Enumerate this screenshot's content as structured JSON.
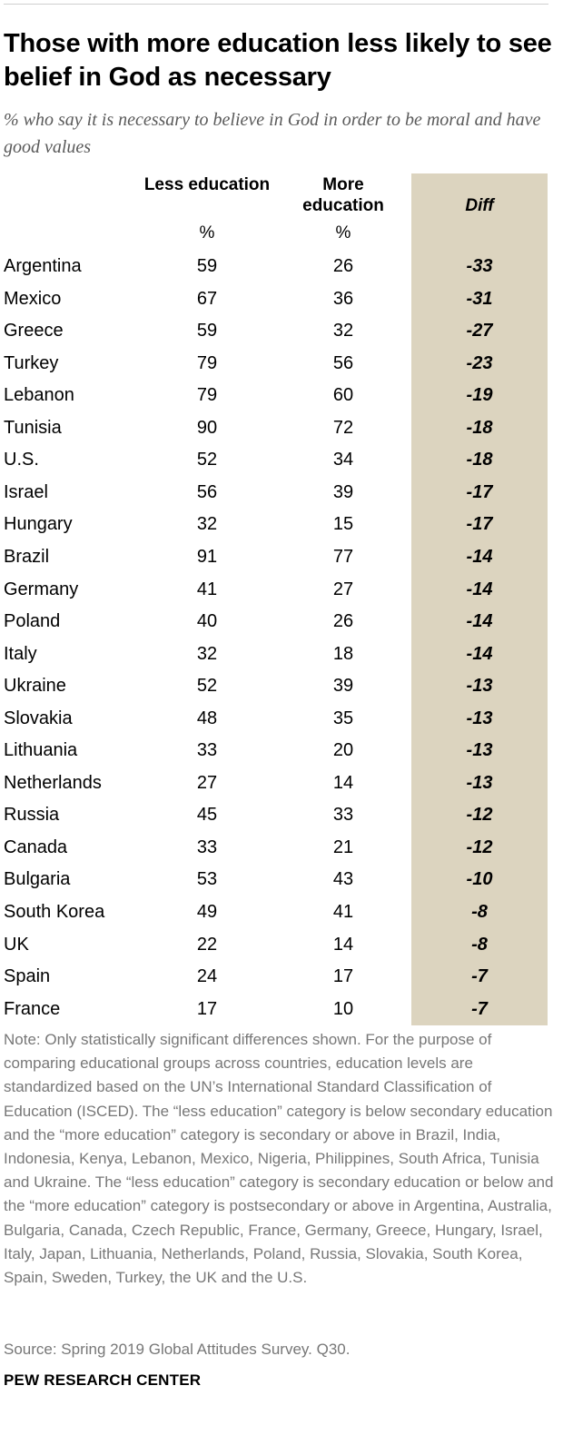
{
  "title": "Those with more education less likely to see belief in God as necessary",
  "subtitle": "% who say it is necessary to believe in God in order to be moral and have good values",
  "columns": {
    "less_label": "Less education",
    "more_label": "More education",
    "diff_label": "Diff",
    "less_unit": "%",
    "more_unit": "%"
  },
  "colors": {
    "diff_background": "#dcd4bf",
    "note_text": "#777777",
    "subtitle_text": "#5a5a5a"
  },
  "chart_data": {
    "type": "table",
    "title": "Those with more education less likely to see belief in God as necessary",
    "subtitle": "% who say it is necessary to believe in God in order to be moral and have good values",
    "columns": [
      "Less education",
      "More education",
      "Diff"
    ],
    "rows": [
      {
        "country": "Argentina",
        "less": "59",
        "more": "26",
        "diff": "-33"
      },
      {
        "country": "Mexico",
        "less": "67",
        "more": "36",
        "diff": "-31"
      },
      {
        "country": "Greece",
        "less": "59",
        "more": "32",
        "diff": "-27"
      },
      {
        "country": "Turkey",
        "less": "79",
        "more": "56",
        "diff": "-23"
      },
      {
        "country": "Lebanon",
        "less": "79",
        "more": "60",
        "diff": "-19"
      },
      {
        "country": "Tunisia",
        "less": "90",
        "more": "72",
        "diff": "-18"
      },
      {
        "country": "U.S.",
        "less": "52",
        "more": "34",
        "diff": "-18"
      },
      {
        "country": "Israel",
        "less": "56",
        "more": "39",
        "diff": "-17"
      },
      {
        "country": "Hungary",
        "less": "32",
        "more": "15",
        "diff": "-17"
      },
      {
        "country": "Brazil",
        "less": "91",
        "more": "77",
        "diff": "-14"
      },
      {
        "country": "Germany",
        "less": "41",
        "more": "27",
        "diff": "-14"
      },
      {
        "country": "Poland",
        "less": "40",
        "more": "26",
        "diff": "-14"
      },
      {
        "country": "Italy",
        "less": "32",
        "more": "18",
        "diff": "-14"
      },
      {
        "country": "Ukraine",
        "less": "52",
        "more": "39",
        "diff": "-13"
      },
      {
        "country": "Slovakia",
        "less": "48",
        "more": "35",
        "diff": "-13"
      },
      {
        "country": "Lithuania",
        "less": "33",
        "more": "20",
        "diff": "-13"
      },
      {
        "country": "Netherlands",
        "less": "27",
        "more": "14",
        "diff": "-13"
      },
      {
        "country": "Russia",
        "less": "45",
        "more": "33",
        "diff": "-12"
      },
      {
        "country": "Canada",
        "less": "33",
        "more": "21",
        "diff": "-12"
      },
      {
        "country": "Bulgaria",
        "less": "53",
        "more": "43",
        "diff": "-10"
      },
      {
        "country": "South Korea",
        "less": "49",
        "more": "41",
        "diff": "-8"
      },
      {
        "country": "UK",
        "less": "22",
        "more": "14",
        "diff": "-8"
      },
      {
        "country": "Spain",
        "less": "24",
        "more": "17",
        "diff": "-7"
      },
      {
        "country": "France",
        "less": "17",
        "more": "10",
        "diff": "-7"
      }
    ]
  },
  "note": "Note: Only statistically significant differences shown. For the purpose of comparing educational groups across countries, education levels are standardized based on the UN’s International Standard Classification of Education (ISCED). The “less education” category is below secondary education and the “more education” category is secondary or above in Brazil, India, Indonesia, Kenya, Lebanon, Mexico, Nigeria, Philippines, South Africa, Tunisia and Ukraine. The “less education” category is secondary education or below and the “more education” category is postsecondary or above in Argentina, Australia, Bulgaria, Canada, Czech Republic, France, Germany, Greece, Hungary, Israel, Italy, Japan, Lithuania, Netherlands, Poland, Russia, Slovakia, South Korea, Spain, Sweden, Turkey, the UK and the U.S.",
  "source": "Source: Spring 2019 Global Attitudes Survey. Q30.",
  "organization": "PEW RESEARCH CENTER"
}
